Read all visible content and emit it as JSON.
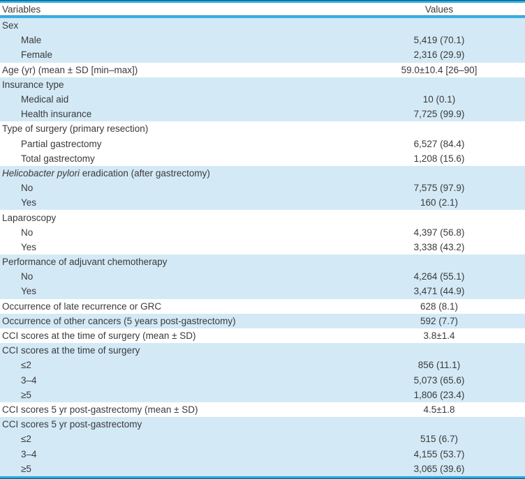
{
  "table": {
    "columns": [
      "Variables",
      "Values"
    ],
    "colors": {
      "accent_rule": "#29abe2",
      "rule_dark_edge": "#134f6b",
      "shaded_row_bg": "#d3e9f6",
      "text": "#3a3a3a"
    },
    "rows": [
      {
        "label": [
          {
            "t": "Sex"
          }
        ],
        "value": "",
        "indent": 0,
        "shade": true
      },
      {
        "label": [
          {
            "t": "Male"
          }
        ],
        "value": "5,419 (70.1)",
        "indent": 1,
        "shade": true
      },
      {
        "label": [
          {
            "t": "Female"
          }
        ],
        "value": "2,316 (29.9)",
        "indent": 1,
        "shade": true
      },
      {
        "label": [
          {
            "t": "Age (yr) (mean ± SD [min–max])"
          }
        ],
        "value": "59.0±10.4 [26–90]",
        "indent": 0,
        "shade": false
      },
      {
        "label": [
          {
            "t": "Insurance type"
          }
        ],
        "value": "",
        "indent": 0,
        "shade": true
      },
      {
        "label": [
          {
            "t": "Medical aid"
          }
        ],
        "value": "10 (0.1)",
        "indent": 1,
        "shade": true
      },
      {
        "label": [
          {
            "t": "Health insurance"
          }
        ],
        "value": "7,725 (99.9)",
        "indent": 1,
        "shade": true
      },
      {
        "label": [
          {
            "t": "Type of surgery (primary resection)"
          }
        ],
        "value": "",
        "indent": 0,
        "shade": false
      },
      {
        "label": [
          {
            "t": "Partial gastrectomy"
          }
        ],
        "value": "6,527 (84.4)",
        "indent": 1,
        "shade": false
      },
      {
        "label": [
          {
            "t": "Total gastrectomy"
          }
        ],
        "value": "1,208 (15.6)",
        "indent": 1,
        "shade": false
      },
      {
        "label": [
          {
            "t": "Helicobacter pylori",
            "i": true
          },
          {
            "t": " eradication (after gastrectomy)"
          }
        ],
        "value": "",
        "indent": 0,
        "shade": true
      },
      {
        "label": [
          {
            "t": "No"
          }
        ],
        "value": "7,575 (97.9)",
        "indent": 1,
        "shade": true
      },
      {
        "label": [
          {
            "t": "Yes"
          }
        ],
        "value": "160 (2.1)",
        "indent": 1,
        "shade": true
      },
      {
        "label": [
          {
            "t": "Laparoscopy"
          }
        ],
        "value": "",
        "indent": 0,
        "shade": false
      },
      {
        "label": [
          {
            "t": "No"
          }
        ],
        "value": "4,397 (56.8)",
        "indent": 1,
        "shade": false
      },
      {
        "label": [
          {
            "t": "Yes"
          }
        ],
        "value": "3,338 (43.2)",
        "indent": 1,
        "shade": false
      },
      {
        "label": [
          {
            "t": "Performance of adjuvant chemotherapy"
          }
        ],
        "value": "",
        "indent": 0,
        "shade": true
      },
      {
        "label": [
          {
            "t": "No"
          }
        ],
        "value": "4,264 (55.1)",
        "indent": 1,
        "shade": true
      },
      {
        "label": [
          {
            "t": "Yes"
          }
        ],
        "value": "3,471 (44.9)",
        "indent": 1,
        "shade": true
      },
      {
        "label": [
          {
            "t": "Occurrence of late recurrence or GRC"
          }
        ],
        "value": "628 (8.1)",
        "indent": 0,
        "shade": false
      },
      {
        "label": [
          {
            "t": "Occurrence of other cancers (5 years post-gastrectomy)"
          }
        ],
        "value": "592 (7.7)",
        "indent": 0,
        "shade": true
      },
      {
        "label": [
          {
            "t": "CCI scores at the time of surgery (mean ± SD)"
          }
        ],
        "value": "3.8±1.4",
        "indent": 0,
        "shade": false
      },
      {
        "label": [
          {
            "t": "CCI scores at the time of surgery"
          }
        ],
        "value": "",
        "indent": 0,
        "shade": true
      },
      {
        "label": [
          {
            "t": "≤2"
          }
        ],
        "value": "856 (11.1)",
        "indent": 1,
        "shade": true
      },
      {
        "label": [
          {
            "t": "3–4"
          }
        ],
        "value": "5,073 (65.6)",
        "indent": 1,
        "shade": true
      },
      {
        "label": [
          {
            "t": "≥5"
          }
        ],
        "value": "1,806 (23.4)",
        "indent": 1,
        "shade": true
      },
      {
        "label": [
          {
            "t": "CCI scores 5 yr post-gastrectomy (mean ± SD)"
          }
        ],
        "value": "4.5±1.8",
        "indent": 0,
        "shade": false
      },
      {
        "label": [
          {
            "t": "CCI scores 5 yr post-gastrectomy"
          }
        ],
        "value": "",
        "indent": 0,
        "shade": true
      },
      {
        "label": [
          {
            "t": "≤2"
          }
        ],
        "value": "515 (6.7)",
        "indent": 1,
        "shade": true
      },
      {
        "label": [
          {
            "t": "3–4"
          }
        ],
        "value": "4,155 (53.7)",
        "indent": 1,
        "shade": true
      },
      {
        "label": [
          {
            "t": "≥5"
          }
        ],
        "value": "3,065 (39.6)",
        "indent": 1,
        "shade": true
      }
    ]
  }
}
